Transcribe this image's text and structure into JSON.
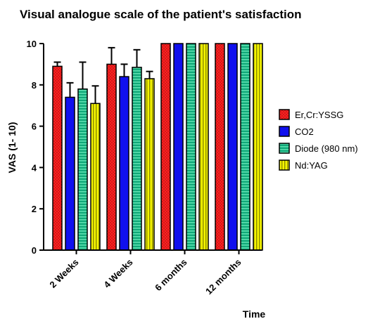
{
  "chart_data": {
    "type": "bar",
    "title": "Visual analogue scale of the patient's satisfaction",
    "xlabel": "Time",
    "ylabel": "VAS  (1- 10)",
    "categories": [
      "2 Weeks",
      "4 Weeks",
      "6 months",
      "12 months"
    ],
    "ylim": [
      0,
      10
    ],
    "yticks": [
      "0",
      "2",
      "4",
      "6",
      "8",
      "10"
    ],
    "grid": false,
    "legend_position": "right",
    "series": [
      {
        "name": "Er,Cr:YSSG",
        "color": "#ff2020",
        "pattern": "dots",
        "values": [
          8.9,
          9.0,
          10,
          10
        ],
        "errors": [
          0.2,
          0.8,
          0,
          0
        ]
      },
      {
        "name": "CO2",
        "color": "#1010ee",
        "pattern": "solid",
        "values": [
          7.4,
          8.4,
          10,
          10
        ],
        "errors": [
          0.7,
          0.6,
          0,
          0
        ]
      },
      {
        "name": "Diode (980 nm)",
        "color": "#10a878",
        "pattern": "hstripes",
        "values": [
          7.8,
          8.85,
          10,
          10
        ],
        "errors": [
          1.3,
          0.85,
          0,
          0
        ]
      },
      {
        "name": "Nd:YAG",
        "color": "#f5f500",
        "pattern": "vstripes",
        "values": [
          7.1,
          8.3,
          10,
          10
        ],
        "errors": [
          0.85,
          0.35,
          0,
          0
        ]
      }
    ]
  }
}
